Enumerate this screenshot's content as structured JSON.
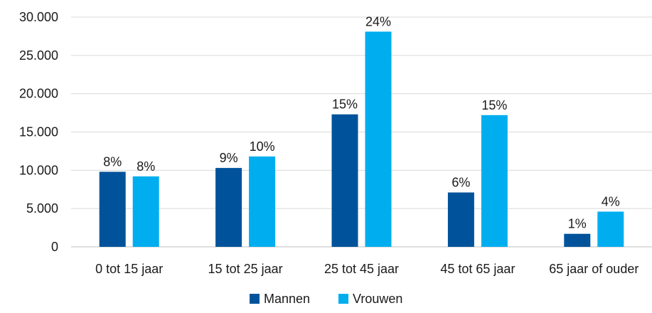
{
  "chart_data": {
    "type": "bar",
    "categories": [
      "0 tot 15 jaar",
      "15 tot 25 jaar",
      "25 tot 45 jaar",
      "45 tot 65 jaar",
      "65 jaar of ouder"
    ],
    "series": [
      {
        "name": "Mannen",
        "color": "#00539b",
        "values": [
          9800,
          10300,
          17300,
          7100,
          1700
        ],
        "labels": [
          "8%",
          "9%",
          "15%",
          "6%",
          "1%"
        ]
      },
      {
        "name": "Vrouwen",
        "color": "#00aeef",
        "values": [
          9200,
          11800,
          28100,
          17200,
          4600
        ],
        "labels": [
          "8%",
          "10%",
          "24%",
          "15%",
          "4%"
        ]
      }
    ],
    "yticks": [
      "0",
      "5.000",
      "10.000",
      "15.000",
      "20.000",
      "25.000",
      "30.000"
    ],
    "ylim": [
      0,
      30000
    ],
    "grid": true,
    "legend": "bottom"
  }
}
